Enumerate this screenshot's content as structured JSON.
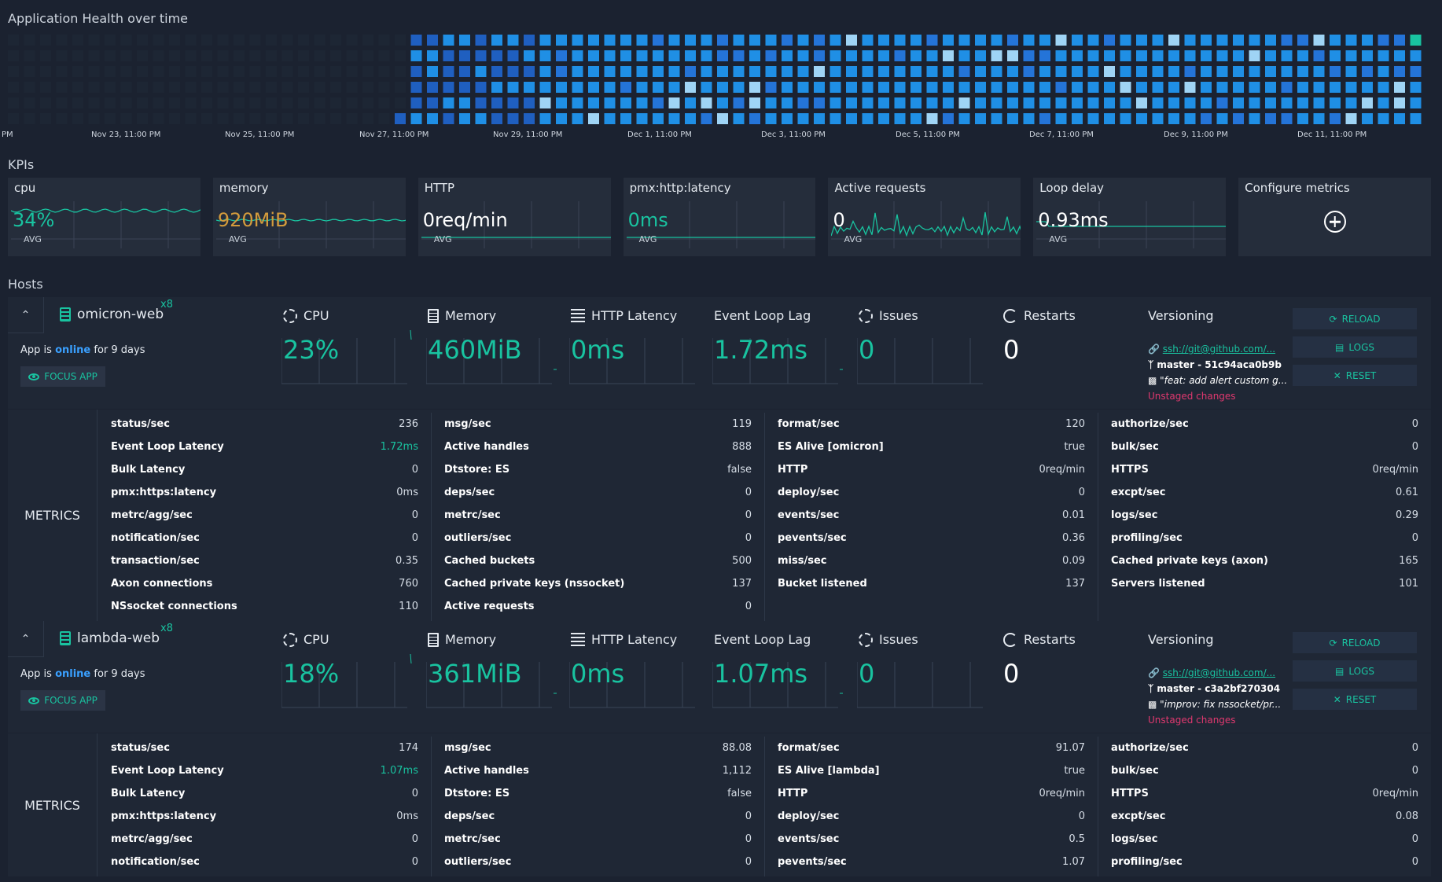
{
  "heatmap": {
    "title": "Application Health over time",
    "xlabels": [
      "PM",
      "Nov 23, 11:00 PM",
      "Nov 25, 11:00 PM",
      "Nov 27, 11:00 PM",
      "Nov 29, 11:00 PM",
      "Dec 1, 11:00 PM",
      "Dec 3, 11:00 PM",
      "Dec 5, 11:00 PM",
      "Dec 7, 11:00 PM",
      "Dec 9, 11:00 PM",
      "Dec 11, 11:00 PM"
    ]
  },
  "kpis": {
    "title": "KPIs",
    "items": [
      {
        "name": "cpu",
        "value": "34%",
        "avg": "AVG",
        "color": "#19c3a0"
      },
      {
        "name": "memory",
        "value": "920MiB",
        "avg": "AVG",
        "color": "#d39b3c"
      },
      {
        "name": "HTTP",
        "value": "0req/min",
        "avg": "AVG",
        "color": "#ffffff"
      },
      {
        "name": "pmx:http:latency",
        "value": "0ms",
        "avg": "AVG",
        "color": "#19c3a0"
      },
      {
        "name": "Active requests",
        "value": "0",
        "avg": "AVG",
        "color": "#ffffff"
      },
      {
        "name": "Loop delay",
        "value": "0.93ms",
        "avg": "AVG",
        "color": "#ffffff"
      }
    ],
    "configure": "Configure metrics"
  },
  "hosts_title": "Hosts",
  "host_labels": {
    "cpu": "CPU",
    "memory": "Memory",
    "latency": "HTTP Latency",
    "lag": "Event Loop Lag",
    "issues": "Issues",
    "restarts": "Restarts",
    "versioning": "Versioning",
    "reload": "RELOAD",
    "logs": "LOGS",
    "reset": "RESET",
    "focus": "FOCUS APP",
    "metrics": "METRICS",
    "app_is": "App is",
    "online": "online",
    "for": "for 9 days",
    "unstaged": "Unstaged changes"
  },
  "hosts": [
    {
      "name": "omicron-web",
      "count": "x8",
      "cpu": "23%",
      "memory": "460MiB",
      "latency": "0ms",
      "lag": "1.72ms",
      "issues": "0",
      "restarts": "0",
      "repo": "ssh://git@github.com/...",
      "branch": "master - 51c94aca0b9b",
      "commit": "\"feat: add alert custom g...",
      "cols": [
        [
          [
            "status/sec",
            "236"
          ],
          [
            "Event Loop Latency",
            "1.72ms"
          ],
          [
            "Bulk Latency",
            "0"
          ],
          [
            "pmx:https:latency",
            "0ms"
          ],
          [
            "metrc/agg/sec",
            "0"
          ],
          [
            "notification/sec",
            "0"
          ],
          [
            "transaction/sec",
            "0.35"
          ],
          [
            "Axon connections",
            "760"
          ],
          [
            "NSsocket connections",
            "110"
          ]
        ],
        [
          [
            "msg/sec",
            "119"
          ],
          [
            "Active handles",
            "888"
          ],
          [
            "Dtstore: ES",
            "false"
          ],
          [
            "deps/sec",
            "0"
          ],
          [
            "metrc/sec",
            "0"
          ],
          [
            "outliers/sec",
            "0"
          ],
          [
            "Cached buckets",
            "500"
          ],
          [
            "Cached private keys (nssocket)",
            "137"
          ],
          [
            "Active requests",
            "0"
          ]
        ],
        [
          [
            "format/sec",
            "120"
          ],
          [
            "ES Alive [omicron]",
            "true"
          ],
          [
            "HTTP",
            "0req/min"
          ],
          [
            "deploy/sec",
            "0"
          ],
          [
            "events/sec",
            "0.01"
          ],
          [
            "pevents/sec",
            "0.36"
          ],
          [
            "miss/sec",
            "0.09"
          ],
          [
            "Bucket listened",
            "137"
          ]
        ],
        [
          [
            "authorize/sec",
            "0"
          ],
          [
            "bulk/sec",
            "0"
          ],
          [
            "HTTPS",
            "0req/min"
          ],
          [
            "excpt/sec",
            "0.61"
          ],
          [
            "logs/sec",
            "0.29"
          ],
          [
            "profiling/sec",
            "0"
          ],
          [
            "Cached private keys (axon)",
            "165"
          ],
          [
            "Servers listened",
            "101"
          ]
        ]
      ]
    },
    {
      "name": "lambda-web",
      "count": "x8",
      "cpu": "18%",
      "memory": "361MiB",
      "latency": "0ms",
      "lag": "1.07ms",
      "issues": "0",
      "restarts": "0",
      "repo": "ssh://git@github.com/...",
      "branch": "master - c3a2bf270304",
      "commit": "\"improv: fix nssocket/pr...",
      "cols": [
        [
          [
            "status/sec",
            "174"
          ],
          [
            "Event Loop Latency",
            "1.07ms"
          ],
          [
            "Bulk Latency",
            "0"
          ],
          [
            "pmx:https:latency",
            "0ms"
          ],
          [
            "metrc/agg/sec",
            "0"
          ],
          [
            "notification/sec",
            "0"
          ]
        ],
        [
          [
            "msg/sec",
            "88.08"
          ],
          [
            "Active handles",
            "1,112"
          ],
          [
            "Dtstore: ES",
            "false"
          ],
          [
            "deps/sec",
            "0"
          ],
          [
            "metrc/sec",
            "0"
          ],
          [
            "outliers/sec",
            "0"
          ]
        ],
        [
          [
            "format/sec",
            "91.07"
          ],
          [
            "ES Alive [lambda]",
            "true"
          ],
          [
            "HTTP",
            "0req/min"
          ],
          [
            "deploy/sec",
            "0"
          ],
          [
            "events/sec",
            "0.5"
          ],
          [
            "pevents/sec",
            "1.07"
          ]
        ],
        [
          [
            "authorize/sec",
            "0"
          ],
          [
            "bulk/sec",
            "0"
          ],
          [
            "HTTPS",
            "0req/min"
          ],
          [
            "excpt/sec",
            "0.08"
          ],
          [
            "logs/sec",
            "0"
          ],
          [
            "profiling/sec",
            "0"
          ]
        ]
      ]
    }
  ]
}
